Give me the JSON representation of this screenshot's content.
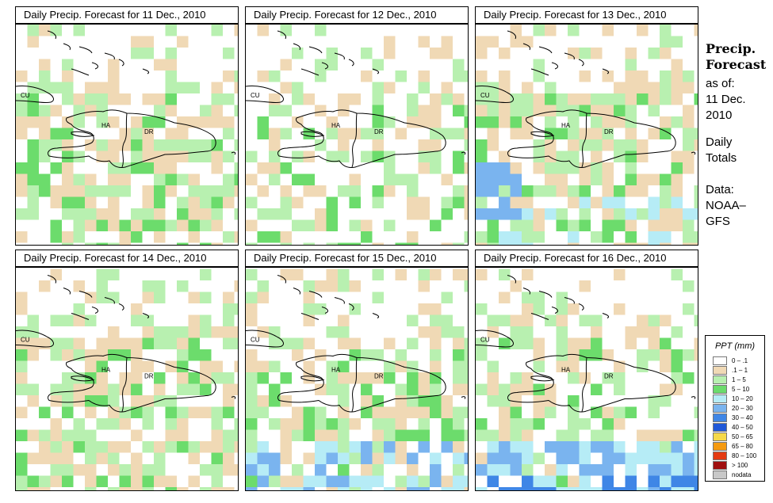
{
  "panels": [
    {
      "title": "Daily Precip. Forecast for  11 Dec., 2010",
      "seed": 11,
      "bias": 0.55,
      "south": 0
    },
    {
      "title": "Daily Precip. Forecast for  12 Dec., 2010",
      "seed": 12,
      "bias": 0.35,
      "south": 0
    },
    {
      "title": "Daily Precip. Forecast for  13 Dec., 2010",
      "seed": 13,
      "bias": 0.6,
      "south": 1
    },
    {
      "title": "Daily Precip. Forecast for  14 Dec., 2010",
      "seed": 14,
      "bias": 0.55,
      "south": 0
    },
    {
      "title": "Daily Precip. Forecast for  15 Dec., 2010",
      "seed": 15,
      "bias": 0.5,
      "south": 2
    },
    {
      "title": "Daily Precip. Forecast for  16 Dec., 2010",
      "seed": 16,
      "bias": 0.45,
      "south": 3
    }
  ],
  "map_labels": {
    "cuba": "CU",
    "haiti": "HA",
    "dominican_republic": "DR"
  },
  "side": {
    "heading1": "Precip.",
    "heading2": "Forecast",
    "asof": "as of:",
    "date1": "11 Dec.",
    "date2": "2010",
    "totals1": "Daily",
    "totals2": "Totals",
    "data1": "Data:",
    "data2": "NOAA–",
    "data3": "GFS"
  },
  "legend": {
    "title": "PPT (mm)",
    "items": [
      {
        "label": "0 – .1",
        "color": "#ffffff"
      },
      {
        "label": ".1 – 1",
        "color": "#f0d9b5"
      },
      {
        "label": "1 – 5",
        "color": "#b8f0b0"
      },
      {
        "label": "5 – 10",
        "color": "#6cdc6c"
      },
      {
        "label": "10 – 20",
        "color": "#b6ecf6"
      },
      {
        "label": "20 – 30",
        "color": "#7ab4ef"
      },
      {
        "label": "30 – 40",
        "color": "#3f86e6"
      },
      {
        "label": "40 – 50",
        "color": "#1f58d8"
      },
      {
        "label": "50 – 65",
        "color": "#f6d94a"
      },
      {
        "label": "65 – 80",
        "color": "#f59a10"
      },
      {
        "label": "80 – 100",
        "color": "#e43a12"
      },
      {
        "label": "> 100",
        "color": "#a01010"
      },
      {
        "label": "nodata",
        "color": "#c8c8c8"
      }
    ]
  }
}
